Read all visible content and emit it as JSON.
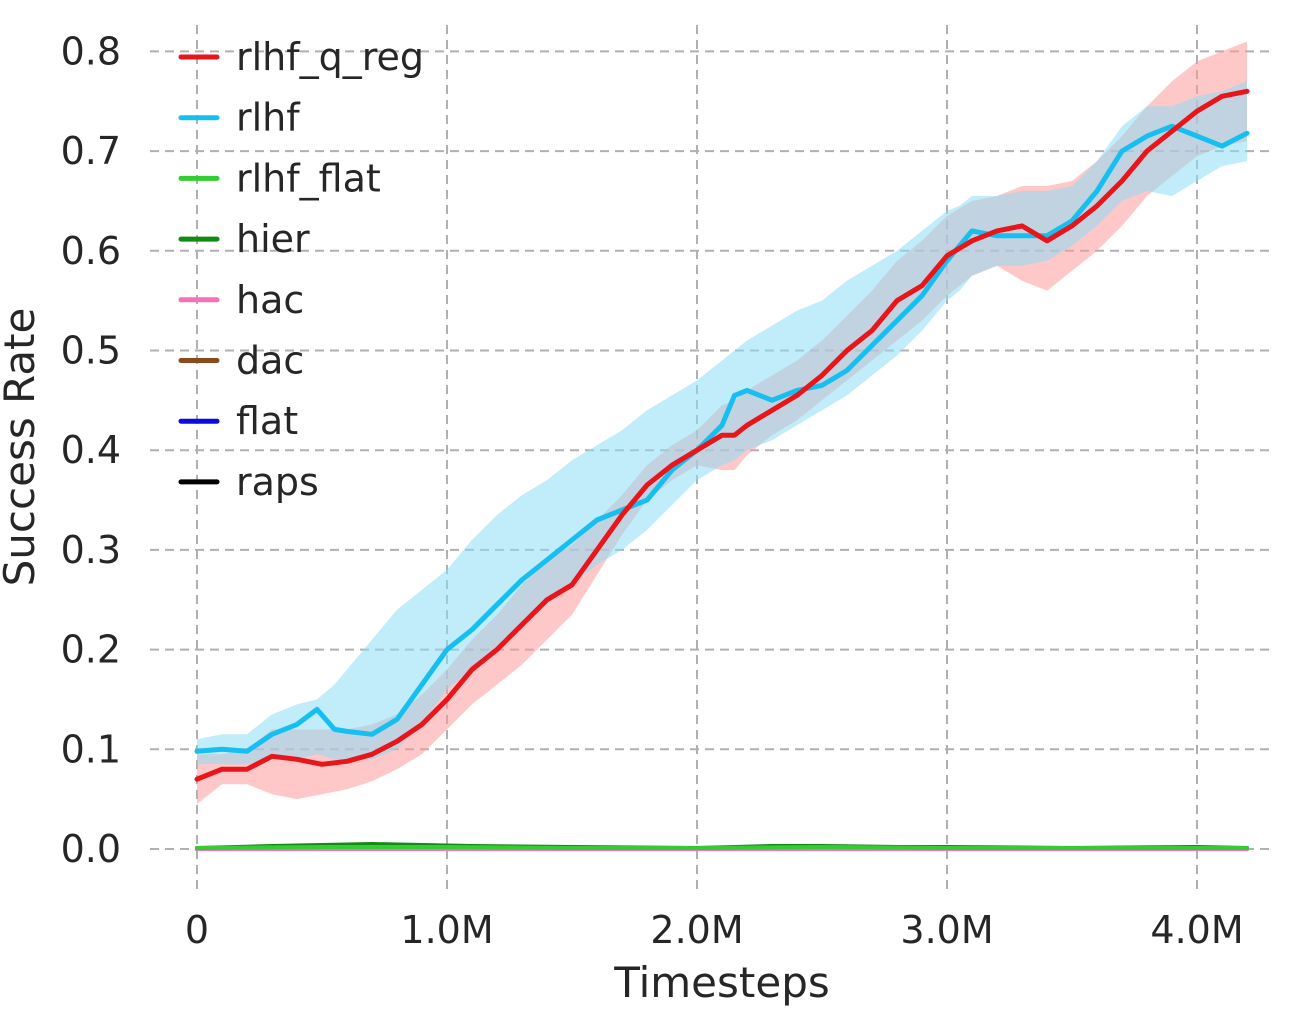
{
  "chart_data": {
    "type": "line",
    "title": "",
    "xlabel": "Timesteps",
    "ylabel": "Success Rate",
    "xlim": [
      -0.15,
      4.3
    ],
    "ylim": [
      -0.04,
      0.82
    ],
    "x_ticks": [
      0,
      1.0,
      2.0,
      3.0,
      4.0
    ],
    "x_tick_labels": [
      "0",
      "1.0M",
      "2.0M",
      "3.0M",
      "4.0M"
    ],
    "y_ticks": [
      0.0,
      0.1,
      0.2,
      0.3,
      0.4,
      0.5,
      0.6,
      0.7,
      0.8
    ],
    "y_tick_labels": [
      "0.0",
      "0.1",
      "0.2",
      "0.3",
      "0.4",
      "0.5",
      "0.6",
      "0.7",
      "0.8"
    ],
    "grid": true,
    "legend_position": "top-left",
    "x_unit": "M timesteps",
    "series": [
      {
        "name": "rlhf_q_reg",
        "color": "#e8161b",
        "band_color": "#ff9a9a",
        "x": [
          0,
          0.1,
          0.2,
          0.3,
          0.4,
          0.5,
          0.6,
          0.7,
          0.8,
          0.9,
          1.0,
          1.1,
          1.2,
          1.3,
          1.4,
          1.5,
          1.6,
          1.7,
          1.8,
          1.9,
          2.0,
          2.1,
          2.15,
          2.2,
          2.3,
          2.4,
          2.5,
          2.6,
          2.7,
          2.8,
          2.9,
          3.0,
          3.1,
          3.2,
          3.3,
          3.4,
          3.5,
          3.6,
          3.7,
          3.8,
          3.9,
          4.0,
          4.1,
          4.2
        ],
        "y": [
          0.07,
          0.08,
          0.08,
          0.093,
          0.09,
          0.085,
          0.088,
          0.095,
          0.108,
          0.125,
          0.15,
          0.18,
          0.2,
          0.225,
          0.25,
          0.265,
          0.3,
          0.335,
          0.365,
          0.385,
          0.4,
          0.415,
          0.415,
          0.425,
          0.44,
          0.455,
          0.475,
          0.5,
          0.52,
          0.55,
          0.565,
          0.595,
          0.61,
          0.62,
          0.625,
          0.61,
          0.625,
          0.645,
          0.67,
          0.7,
          0.72,
          0.74,
          0.755,
          0.76
        ],
        "lower": [
          0.045,
          0.065,
          0.065,
          0.055,
          0.05,
          0.055,
          0.06,
          0.068,
          0.08,
          0.095,
          0.12,
          0.145,
          0.165,
          0.185,
          0.21,
          0.235,
          0.275,
          0.315,
          0.35,
          0.37,
          0.385,
          0.38,
          0.38,
          0.395,
          0.415,
          0.43,
          0.45,
          0.47,
          0.49,
          0.51,
          0.53,
          0.555,
          0.575,
          0.585,
          0.57,
          0.56,
          0.58,
          0.6,
          0.625,
          0.655,
          0.675,
          0.695,
          0.705,
          0.71
        ],
        "upper": [
          0.095,
          0.095,
          0.1,
          0.12,
          0.12,
          0.12,
          0.12,
          0.125,
          0.135,
          0.155,
          0.18,
          0.21,
          0.235,
          0.265,
          0.29,
          0.305,
          0.33,
          0.355,
          0.385,
          0.405,
          0.42,
          0.445,
          0.45,
          0.46,
          0.475,
          0.49,
          0.51,
          0.535,
          0.56,
          0.59,
          0.61,
          0.635,
          0.65,
          0.655,
          0.665,
          0.665,
          0.67,
          0.69,
          0.715,
          0.745,
          0.77,
          0.79,
          0.8,
          0.81
        ]
      },
      {
        "name": "rlhf",
        "color": "#16bff0",
        "band_color": "#8edcf4",
        "x": [
          0,
          0.1,
          0.2,
          0.3,
          0.4,
          0.48,
          0.55,
          0.6,
          0.7,
          0.8,
          0.9,
          1.0,
          1.1,
          1.2,
          1.3,
          1.4,
          1.5,
          1.6,
          1.7,
          1.8,
          1.9,
          2.0,
          2.1,
          2.15,
          2.2,
          2.3,
          2.4,
          2.5,
          2.6,
          2.7,
          2.8,
          2.9,
          3.0,
          3.05,
          3.1,
          3.2,
          3.3,
          3.4,
          3.5,
          3.6,
          3.7,
          3.8,
          3.9,
          4.0,
          4.1,
          4.2
        ],
        "y": [
          0.098,
          0.1,
          0.098,
          0.115,
          0.125,
          0.14,
          0.12,
          0.118,
          0.115,
          0.13,
          0.165,
          0.2,
          0.22,
          0.245,
          0.27,
          0.29,
          0.31,
          0.33,
          0.34,
          0.35,
          0.38,
          0.4,
          0.425,
          0.455,
          0.46,
          0.45,
          0.46,
          0.465,
          0.48,
          0.505,
          0.53,
          0.555,
          0.59,
          0.605,
          0.62,
          0.615,
          0.615,
          0.615,
          0.63,
          0.66,
          0.7,
          0.715,
          0.725,
          0.715,
          0.705,
          0.718
        ],
        "lower": [
          0.085,
          0.085,
          0.085,
          0.09,
          0.09,
          0.095,
          0.09,
          0.088,
          0.09,
          0.1,
          0.125,
          0.16,
          0.18,
          0.2,
          0.225,
          0.245,
          0.265,
          0.285,
          0.3,
          0.32,
          0.345,
          0.37,
          0.385,
          0.39,
          0.4,
          0.41,
          0.425,
          0.44,
          0.455,
          0.475,
          0.495,
          0.52,
          0.55,
          0.56,
          0.575,
          0.585,
          0.585,
          0.59,
          0.605,
          0.625,
          0.65,
          0.66,
          0.655,
          0.67,
          0.685,
          0.69
        ],
        "upper": [
          0.11,
          0.115,
          0.115,
          0.135,
          0.145,
          0.15,
          0.165,
          0.18,
          0.21,
          0.24,
          0.26,
          0.28,
          0.31,
          0.335,
          0.355,
          0.37,
          0.39,
          0.405,
          0.42,
          0.44,
          0.455,
          0.47,
          0.49,
          0.5,
          0.51,
          0.525,
          0.54,
          0.55,
          0.57,
          0.585,
          0.6,
          0.62,
          0.64,
          0.645,
          0.655,
          0.655,
          0.66,
          0.66,
          0.665,
          0.69,
          0.725,
          0.745,
          0.745,
          0.755,
          0.76,
          0.77
        ]
      },
      {
        "name": "rlhf_flat",
        "color": "#32cd32",
        "x": [
          0,
          0.5,
          1.0,
          1.5,
          2.0,
          2.5,
          3.0,
          3.5,
          4.0,
          4.2
        ],
        "y": [
          0.001,
          0.002,
          0.002,
          0.001,
          0.001,
          0.002,
          0.001,
          0.001,
          0.001,
          0.001
        ]
      },
      {
        "name": "hier",
        "color": "#138a13",
        "x": [
          0,
          0.3,
          0.5,
          0.7,
          0.9,
          1.1,
          1.5,
          2.0,
          2.3,
          2.5,
          2.8,
          3.0,
          3.5,
          4.0,
          4.2
        ],
        "y": [
          0.001,
          0.003,
          0.004,
          0.005,
          0.004,
          0.003,
          0.002,
          0.001,
          0.003,
          0.003,
          0.002,
          0.002,
          0.001,
          0.002,
          0.001
        ]
      },
      {
        "name": "hac",
        "color": "#f572b8",
        "x": [
          0,
          1.0,
          2.0,
          3.0,
          4.0,
          4.2
        ],
        "y": [
          0.0,
          0.0,
          0.0,
          0.0,
          0.0,
          0.0
        ]
      },
      {
        "name": "dac",
        "color": "#8b4a1c",
        "x": [
          0,
          1.0,
          2.0,
          3.0,
          4.0,
          4.2
        ],
        "y": [
          0.0,
          0.0,
          0.0,
          0.0,
          0.0,
          0.0
        ]
      },
      {
        "name": "flat",
        "color": "#0b0bdb",
        "x": [
          0,
          1.0,
          2.0,
          3.0,
          4.0,
          4.2
        ],
        "y": [
          0.001,
          0.001,
          0.0,
          0.001,
          0.001,
          0.001
        ]
      },
      {
        "name": "raps",
        "color": "#000000",
        "x": [
          0,
          1.0,
          2.0,
          3.0,
          4.0,
          4.2
        ],
        "y": [
          0.0,
          0.0,
          0.0,
          0.0,
          0.0,
          0.0
        ]
      }
    ]
  }
}
